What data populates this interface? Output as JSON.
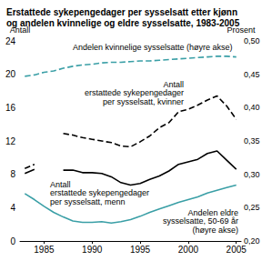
{
  "chart_data": {
    "type": "line",
    "title": "Erstattede sykepengedager per sysselsatt etter kjønn\nog andelen kvinnelige og eldre sysselsatte, 1983-2005",
    "y_label": "Antall",
    "y2_label": "Prosent",
    "x": [
      1983,
      1984,
      1985,
      1986,
      1987,
      1988,
      1989,
      1990,
      1991,
      1992,
      1993,
      1994,
      1995,
      1996,
      1997,
      1998,
      1999,
      2000,
      2001,
      2002,
      2003,
      2004,
      2005
    ],
    "xlim": [
      1982.5,
      2005.5
    ],
    "xticks": [
      1985,
      1990,
      1995,
      2000,
      2005
    ],
    "ylim": [
      0,
      24
    ],
    "yticks": [
      0,
      4,
      8,
      12,
      16,
      20,
      24
    ],
    "y2lim": [
      0.2,
      0.5
    ],
    "y2ticks": [
      {
        "value": 0.2,
        "label": "0,20"
      },
      {
        "value": 0.25,
        "label": "0,25"
      },
      {
        "value": 0.3,
        "label": "0,30"
      },
      {
        "value": 0.35,
        "label": "0,35"
      },
      {
        "value": 0.4,
        "label": "0,40"
      },
      {
        "value": 0.45,
        "label": "0,45"
      },
      {
        "value": 0.5,
        "label": "0,50"
      }
    ],
    "grid": false,
    "series": [
      {
        "name": "Andelen kvinnelige sysselsatte (høyre akse)",
        "axis": "y2",
        "color": "#3a9fa6",
        "line_style": "dashed",
        "values": [
          0.447,
          0.449,
          0.453,
          0.455,
          0.459,
          0.462,
          0.464,
          0.465,
          0.467,
          0.468,
          0.468,
          0.469,
          0.47,
          0.47,
          0.471,
          0.472,
          0.473,
          0.474,
          0.475,
          0.476,
          0.477,
          0.477,
          0.476
        ]
      },
      {
        "name": "Antall\nerstattede sykepengedager\nper sysselsatt, kvinner",
        "color": "#000000",
        "line_style": "dashed",
        "values": [
          8.7,
          9.2,
          null,
          null,
          12.9,
          12.7,
          12.4,
          12.2,
          12.0,
          11.8,
          11.4,
          11.3,
          11.9,
          12.6,
          13.6,
          14.2,
          15.5,
          15.8,
          16.3,
          16.9,
          17.4,
          16.2,
          14.6
        ]
      },
      {
        "name": "Antall\nerstattede sykepengedager\nper sysselsatt, menn",
        "color": "#000000",
        "line_style": "solid",
        "values": [
          8.1,
          8.6,
          null,
          null,
          8.5,
          8.5,
          8.2,
          8.2,
          8.1,
          7.7,
          7.0,
          6.7,
          6.9,
          7.4,
          7.8,
          8.4,
          9.2,
          9.5,
          9.8,
          10.5,
          10.8,
          9.7,
          8.6
        ]
      },
      {
        "name": "Andelen eldre\nsysselsatte, 50-69 år\n(høyre akse)",
        "axis": "y2",
        "color": "#3a9fa6",
        "line_style": "solid",
        "values": [
          0.271,
          0.262,
          0.252,
          0.243,
          0.236,
          0.23,
          0.228,
          0.228,
          0.229,
          0.227,
          0.229,
          0.232,
          0.237,
          0.243,
          0.248,
          0.253,
          0.258,
          0.262,
          0.266,
          0.272,
          0.276,
          0.28,
          0.284
        ]
      }
    ]
  }
}
